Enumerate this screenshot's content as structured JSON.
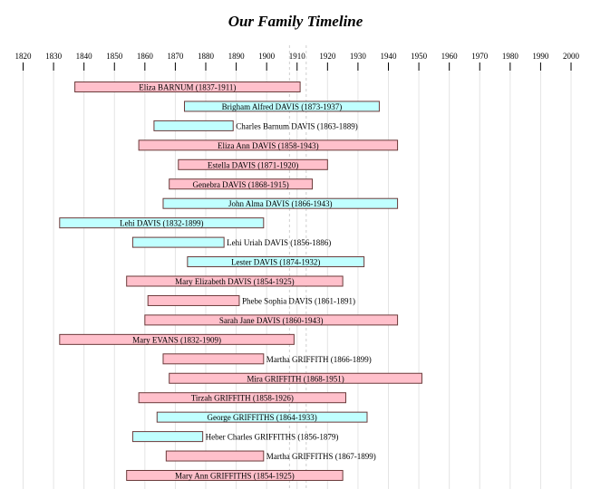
{
  "chart_data": {
    "type": "timeline",
    "title": "Our Family Timeline",
    "xlim": [
      1820,
      2000
    ],
    "ticks": [
      1820,
      1830,
      1840,
      1850,
      1860,
      1870,
      1880,
      1890,
      1900,
      1910,
      1920,
      1930,
      1940,
      1950,
      1960,
      1970,
      1980,
      1990,
      2000
    ],
    "grid": true,
    "reference_lines": [
      1907.5,
      1913
    ],
    "colors": {
      "female": "#ffc0cb",
      "male": "#c0ffff",
      "border": "#6b3a3a"
    },
    "entries": [
      {
        "label": "Eliza BARNUM (1837-1911)",
        "start": 1837,
        "end": 1911,
        "sex": "female"
      },
      {
        "label": "Brigham Alfred DAVIS (1873-1937)",
        "start": 1873,
        "end": 1937,
        "sex": "male"
      },
      {
        "label": "Charles Barnum DAVIS (1863-1889)",
        "start": 1863,
        "end": 1889,
        "sex": "male"
      },
      {
        "label": "Eliza Ann DAVIS (1858-1943)",
        "start": 1858,
        "end": 1943,
        "sex": "female"
      },
      {
        "label": "Estella DAVIS (1871-1920)",
        "start": 1871,
        "end": 1920,
        "sex": "female"
      },
      {
        "label": "Genebra DAVIS (1868-1915)",
        "start": 1868,
        "end": 1915,
        "sex": "female"
      },
      {
        "label": "John Alma DAVIS (1866-1943)",
        "start": 1866,
        "end": 1943,
        "sex": "male"
      },
      {
        "label": "Lehi DAVIS (1832-1899)",
        "start": 1832,
        "end": 1899,
        "sex": "male"
      },
      {
        "label": "Lehi Uriah DAVIS (1856-1886)",
        "start": 1856,
        "end": 1886,
        "sex": "male"
      },
      {
        "label": "Lester DAVIS (1874-1932)",
        "start": 1874,
        "end": 1932,
        "sex": "male"
      },
      {
        "label": "Mary Elizabeth DAVIS (1854-1925)",
        "start": 1854,
        "end": 1925,
        "sex": "female"
      },
      {
        "label": "Phebe Sophia DAVIS (1861-1891)",
        "start": 1861,
        "end": 1891,
        "sex": "female"
      },
      {
        "label": "Sarah Jane DAVIS (1860-1943)",
        "start": 1860,
        "end": 1943,
        "sex": "female"
      },
      {
        "label": "Mary EVANS (1832-1909)",
        "start": 1832,
        "end": 1909,
        "sex": "female"
      },
      {
        "label": "Martha GRIFFITH (1866-1899)",
        "start": 1866,
        "end": 1899,
        "sex": "female"
      },
      {
        "label": "Mira GRIFFITH (1868-1951)",
        "start": 1868,
        "end": 1951,
        "sex": "female"
      },
      {
        "label": "Tirzah GRIFFITH (1858-1926)",
        "start": 1858,
        "end": 1926,
        "sex": "female"
      },
      {
        "label": "George GRIFFITHS (1864-1933)",
        "start": 1864,
        "end": 1933,
        "sex": "male"
      },
      {
        "label": "Heber Charles GRIFFITHS (1856-1879)",
        "start": 1856,
        "end": 1879,
        "sex": "male"
      },
      {
        "label": "Martha GRIFFITHS (1867-1899)",
        "start": 1867,
        "end": 1899,
        "sex": "female"
      },
      {
        "label": "Mary Ann GRIFFITHS (1854-1925)",
        "start": 1854,
        "end": 1925,
        "sex": "female"
      }
    ]
  }
}
